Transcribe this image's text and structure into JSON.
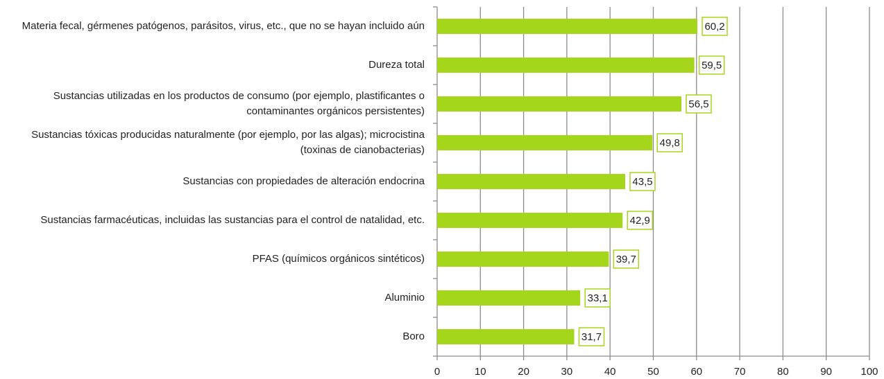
{
  "chart_data": {
    "type": "bar",
    "orientation": "horizontal",
    "categories": [
      "Materia fecal, gérmenes patógenos, parásitos, virus, etc., que no se hayan incluido aún",
      "Dureza total",
      "Sustancias utilizadas en los productos de consumo (por ejemplo, plastificantes o contaminantes orgánicos persistentes)",
      "Sustancias tóxicas producidas naturalmente (por ejemplo, por las algas); microcistina (toxinas de cianobacterias)",
      "Sustancias con propiedades de alteración endocrina",
      "Sustancias farmacéuticas, incluidas las sustancias para el control de natalidad, etc.",
      "PFAS (químicos orgánicos sintéticos)",
      "Aluminio",
      "Boro"
    ],
    "values": [
      60.2,
      59.5,
      56.5,
      49.8,
      43.5,
      42.9,
      39.7,
      33.1,
      31.7
    ],
    "value_labels": [
      "60,2",
      "59,5",
      "56,5",
      "49,8",
      "43,5",
      "42,9",
      "39,7",
      "33,1",
      "31,7"
    ],
    "color": "#a5d61c",
    "xlim": [
      0,
      100
    ],
    "xticks": [
      0,
      10,
      20,
      30,
      40,
      50,
      60,
      70,
      80,
      90,
      100
    ],
    "grid": true
  }
}
